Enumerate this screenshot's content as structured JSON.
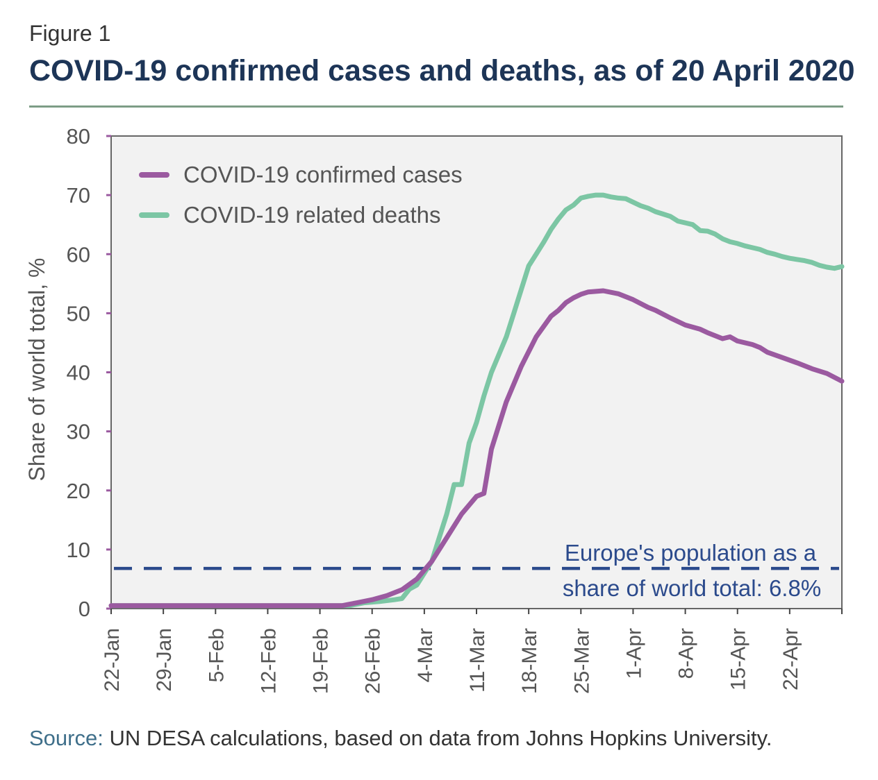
{
  "figure_label": "Figure 1",
  "title": "COVID-19 confirmed cases and deaths, as of 20 April 2020",
  "source_label": "Source:",
  "source_text": " UN DESA calculations, based on data from Johns Hopkins University.",
  "colors": {
    "cases": "#9b5aa0",
    "deaths": "#7cc6a4",
    "reference": "#2b4a8c",
    "title": "#1d3557",
    "rule": "#7d9d86",
    "axis": "#555555"
  },
  "chart_data": {
    "type": "line",
    "ylabel": "Share of world total, %",
    "xlabel": "",
    "ylim": [
      0,
      80
    ],
    "yticks": [
      0,
      10,
      20,
      30,
      40,
      50,
      60,
      70,
      80
    ],
    "xlim": [
      0,
      98
    ],
    "xtick_positions": [
      0,
      7,
      14,
      21,
      28,
      35,
      42,
      49,
      56,
      63,
      70,
      77,
      84,
      91
    ],
    "xtick_labels": [
      "22-Jan",
      "29-Jan",
      "5-Feb",
      "12-Feb",
      "19-Feb",
      "26-Feb",
      "4-Mar",
      "11-Mar",
      "18-Mar",
      "25-Mar",
      "1-Apr",
      "8-Apr",
      "15-Apr",
      "22-Apr"
    ],
    "legend_position": "top-left",
    "series": [
      {
        "name": "COVID-19 confirmed cases",
        "x": [
          0,
          31,
          33,
          35,
          37,
          39,
          41,
          43,
          45,
          47,
          49,
          50,
          51,
          52,
          53,
          55,
          57,
          59,
          60,
          61,
          62,
          63,
          64,
          66,
          68,
          69,
          70,
          72,
          73,
          75,
          77,
          79,
          80,
          81,
          82,
          83,
          84,
          86,
          87,
          88,
          90,
          92,
          94,
          96,
          98
        ],
        "y": [
          0.5,
          0.5,
          1,
          1.5,
          2.2,
          3.2,
          5,
          8,
          12,
          16,
          19,
          19.5,
          27,
          31,
          35,
          41,
          46,
          49.5,
          50.5,
          51.8,
          52.6,
          53.2,
          53.6,
          53.8,
          53.3,
          52.8,
          52.3,
          51,
          50.5,
          49.2,
          48,
          47.3,
          46.7,
          46.2,
          45.7,
          46,
          45.3,
          44.7,
          44.2,
          43.4,
          42.5,
          41.6,
          40.6,
          39.8,
          38.5
        ]
      },
      {
        "name": "COVID-19 related deaths",
        "x": [
          0,
          32,
          34,
          36,
          38,
          39,
          40,
          41,
          42,
          43,
          44,
          45,
          46,
          47,
          48,
          49,
          50,
          51,
          52,
          53,
          54,
          55,
          56,
          57,
          58,
          59,
          60,
          61,
          62,
          63,
          64,
          65,
          66,
          67,
          68,
          69,
          70,
          71,
          72,
          73,
          74,
          75,
          76,
          77,
          78,
          79,
          80,
          81,
          82,
          83,
          84,
          85,
          86,
          87,
          88,
          89,
          90,
          91,
          92,
          93,
          94,
          95,
          96,
          97,
          98
        ],
        "y": [
          0.5,
          0.5,
          1,
          1.2,
          1.5,
          1.7,
          3.3,
          4,
          6,
          8,
          12,
          16,
          21,
          21,
          28,
          31.5,
          36,
          40,
          43,
          46,
          50,
          54,
          58,
          60,
          62,
          64.2,
          66,
          67.5,
          68.3,
          69.5,
          69.8,
          70,
          70,
          69.7,
          69.5,
          69.4,
          68.8,
          68.2,
          67.8,
          67.2,
          66.8,
          66.4,
          65.6,
          65.3,
          65,
          64,
          63.9,
          63.4,
          62.6,
          62.1,
          61.8,
          61.4,
          61.1,
          60.8,
          60.3,
          60,
          59.6,
          59.3,
          59.1,
          58.9,
          58.6,
          58.1,
          57.8,
          57.6,
          57.9
        ]
      }
    ],
    "reference_line": {
      "value": 6.8,
      "label_line1": "Europe's population as a",
      "label_line2": "share of world total: 6.8%"
    }
  }
}
